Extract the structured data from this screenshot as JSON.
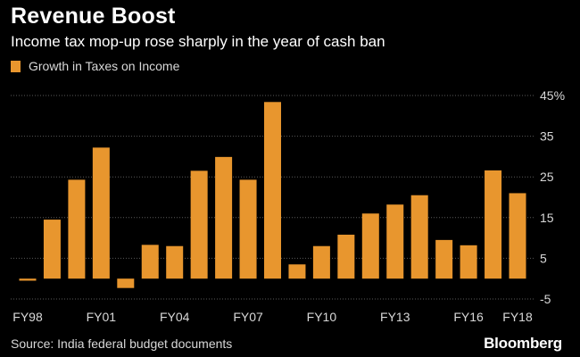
{
  "header": {
    "title": "Revenue Boost",
    "subtitle": "Income tax mop-up rose sharply in the year of cash ban"
  },
  "footer": {
    "source": "Source: India federal budget documents",
    "brand": "Bloomberg"
  },
  "colors": {
    "bar": "#E8962E",
    "background": "#000000",
    "grid": "#5a5a5a",
    "text": "#d8d8d8"
  },
  "chart_data": {
    "type": "bar",
    "title": "Revenue Boost",
    "subtitle": "Income tax mop-up rose sharply in the year of cash ban",
    "legend": [
      "Growth in Taxes on Income"
    ],
    "legend_position": "top-left",
    "xlabel": "",
    "ylabel": "",
    "ylim": [
      -5,
      45
    ],
    "y_ticks": [
      -5,
      5,
      15,
      25,
      35,
      45
    ],
    "y_tick_labels": [
      "-5",
      "5",
      "15",
      "25",
      "35",
      "45%"
    ],
    "grid": true,
    "categories": [
      "FY98",
      "FY99",
      "FY00",
      "FY01",
      "FY02",
      "FY03",
      "FY04",
      "FY05",
      "FY06",
      "FY07",
      "FY08",
      "FY09",
      "FY10",
      "FY11",
      "FY12",
      "FY13",
      "FY14",
      "FY15",
      "FY16",
      "FY17",
      "FY18"
    ],
    "x_tick_labels": [
      "FY98",
      "FY01",
      "FY04",
      "FY07",
      "FY10",
      "FY13",
      "FY16",
      "FY18"
    ],
    "series": [
      {
        "name": "Growth in Taxes on Income",
        "values": [
          -0.5,
          14.5,
          24.3,
          32.2,
          -2.3,
          8.3,
          8.0,
          26.5,
          29.9,
          24.3,
          43.4,
          3.5,
          8.0,
          10.8,
          16.0,
          18.2,
          20.5,
          9.5,
          8.2,
          26.6,
          21.0
        ]
      }
    ]
  }
}
